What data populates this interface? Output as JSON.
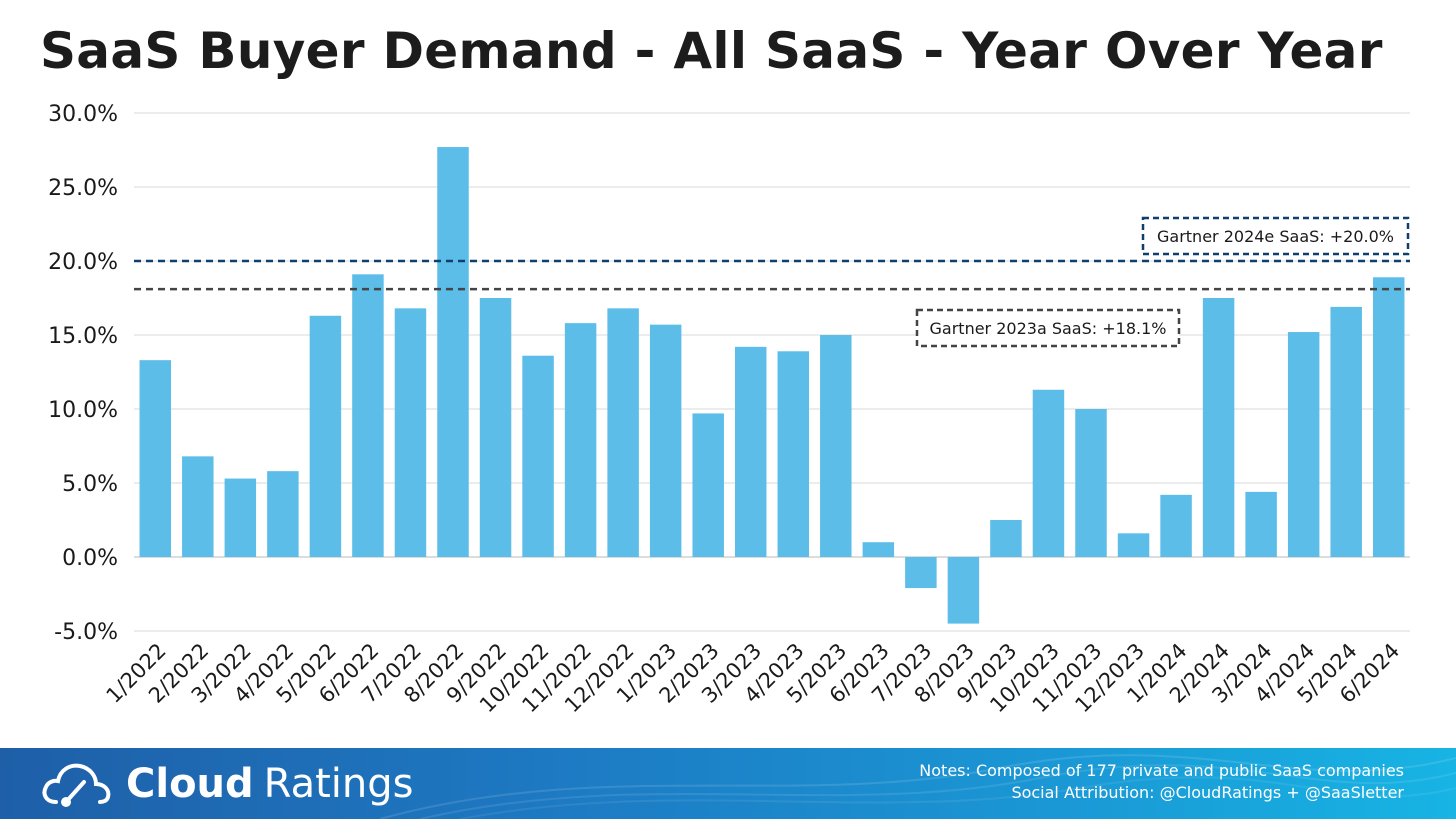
{
  "title": "SaaS Buyer Demand - All SaaS - Year Over Year",
  "chart_data": {
    "type": "bar",
    "categories": [
      "1/2022",
      "2/2022",
      "3/2022",
      "4/2022",
      "5/2022",
      "6/2022",
      "7/2022",
      "8/2022",
      "9/2022",
      "10/2022",
      "11/2022",
      "12/2022",
      "1/2023",
      "2/2023",
      "3/2023",
      "4/2023",
      "5/2023",
      "6/2023",
      "7/2023",
      "8/2023",
      "9/2023",
      "10/2023",
      "11/2023",
      "12/2023",
      "1/2024",
      "2/2024",
      "3/2024",
      "4/2024",
      "5/2024",
      "6/2024"
    ],
    "values": [
      13.3,
      6.8,
      5.3,
      5.8,
      16.3,
      19.1,
      16.8,
      27.7,
      17.5,
      13.6,
      15.8,
      16.8,
      15.7,
      9.7,
      14.2,
      13.9,
      15.0,
      1.0,
      -2.1,
      -4.5,
      2.5,
      11.3,
      10.0,
      1.6,
      4.2,
      17.5,
      4.4,
      15.2,
      16.9,
      18.9
    ],
    "ylim": [
      -5,
      30
    ],
    "yticks": [
      -5,
      0,
      5,
      10,
      15,
      20,
      25,
      30
    ],
    "ytick_labels": [
      "-5.0%",
      "0.0%",
      "5.0%",
      "10.0%",
      "15.0%",
      "20.0%",
      "25.0%",
      "30.0%"
    ],
    "grid": true,
    "bar_color": "#5bbde8",
    "reference_lines": [
      {
        "label": "Gartner 2024e SaaS: +20.0%",
        "value": 20.0,
        "color": "#0f3f6e"
      },
      {
        "label": "Gartner 2023a SaaS: +18.1%",
        "value": 18.1,
        "color": "#444444"
      }
    ]
  },
  "footer": {
    "brand_bold": "Cloud",
    "brand_light": "Ratings",
    "logo_icon": "cloud-gauge-icon",
    "notes_line1": "Notes: Composed of 177 private and public SaaS companies",
    "notes_line2": "Social Attribution: @CloudRatings + @SaaSletter"
  }
}
